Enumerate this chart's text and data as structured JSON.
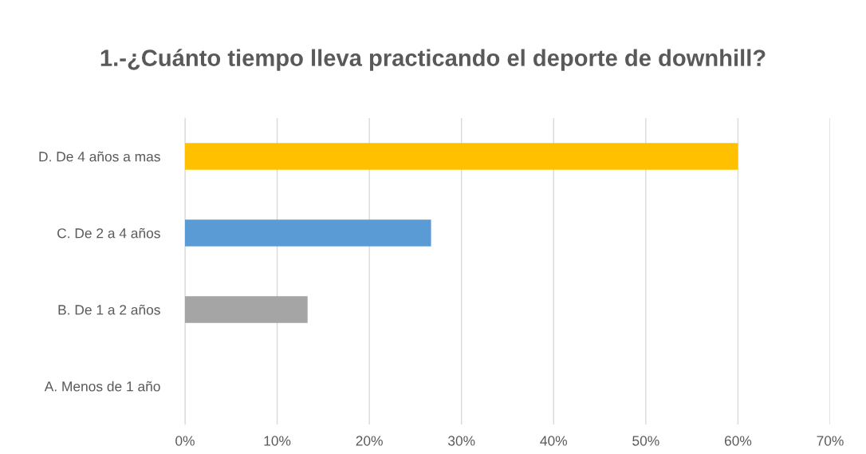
{
  "chart_data": {
    "type": "bar",
    "orientation": "horizontal",
    "title": "1.-¿Cuánto tiempo lleva practicando el deporte de downhill?",
    "categories": [
      "D. De 4 años a mas",
      "C. De 2 a 4 años",
      "B. De 1 a 2 años",
      "A. Menos de 1 año"
    ],
    "values": [
      60,
      26.7,
      13.3,
      0
    ],
    "colors": [
      "#ffc000",
      "#5b9bd5",
      "#a5a5a5",
      "#ed7d31"
    ],
    "xlim": [
      0,
      70
    ],
    "xticks": [
      {
        "value": 0,
        "label": "0%"
      },
      {
        "value": 10,
        "label": "10%"
      },
      {
        "value": 20,
        "label": "20%"
      },
      {
        "value": 30,
        "label": "30%"
      },
      {
        "value": 40,
        "label": "40%"
      },
      {
        "value": 50,
        "label": "50%"
      },
      {
        "value": 60,
        "label": "60%"
      },
      {
        "value": 70,
        "label": "70%"
      }
    ],
    "grid": "x",
    "legend": false
  }
}
